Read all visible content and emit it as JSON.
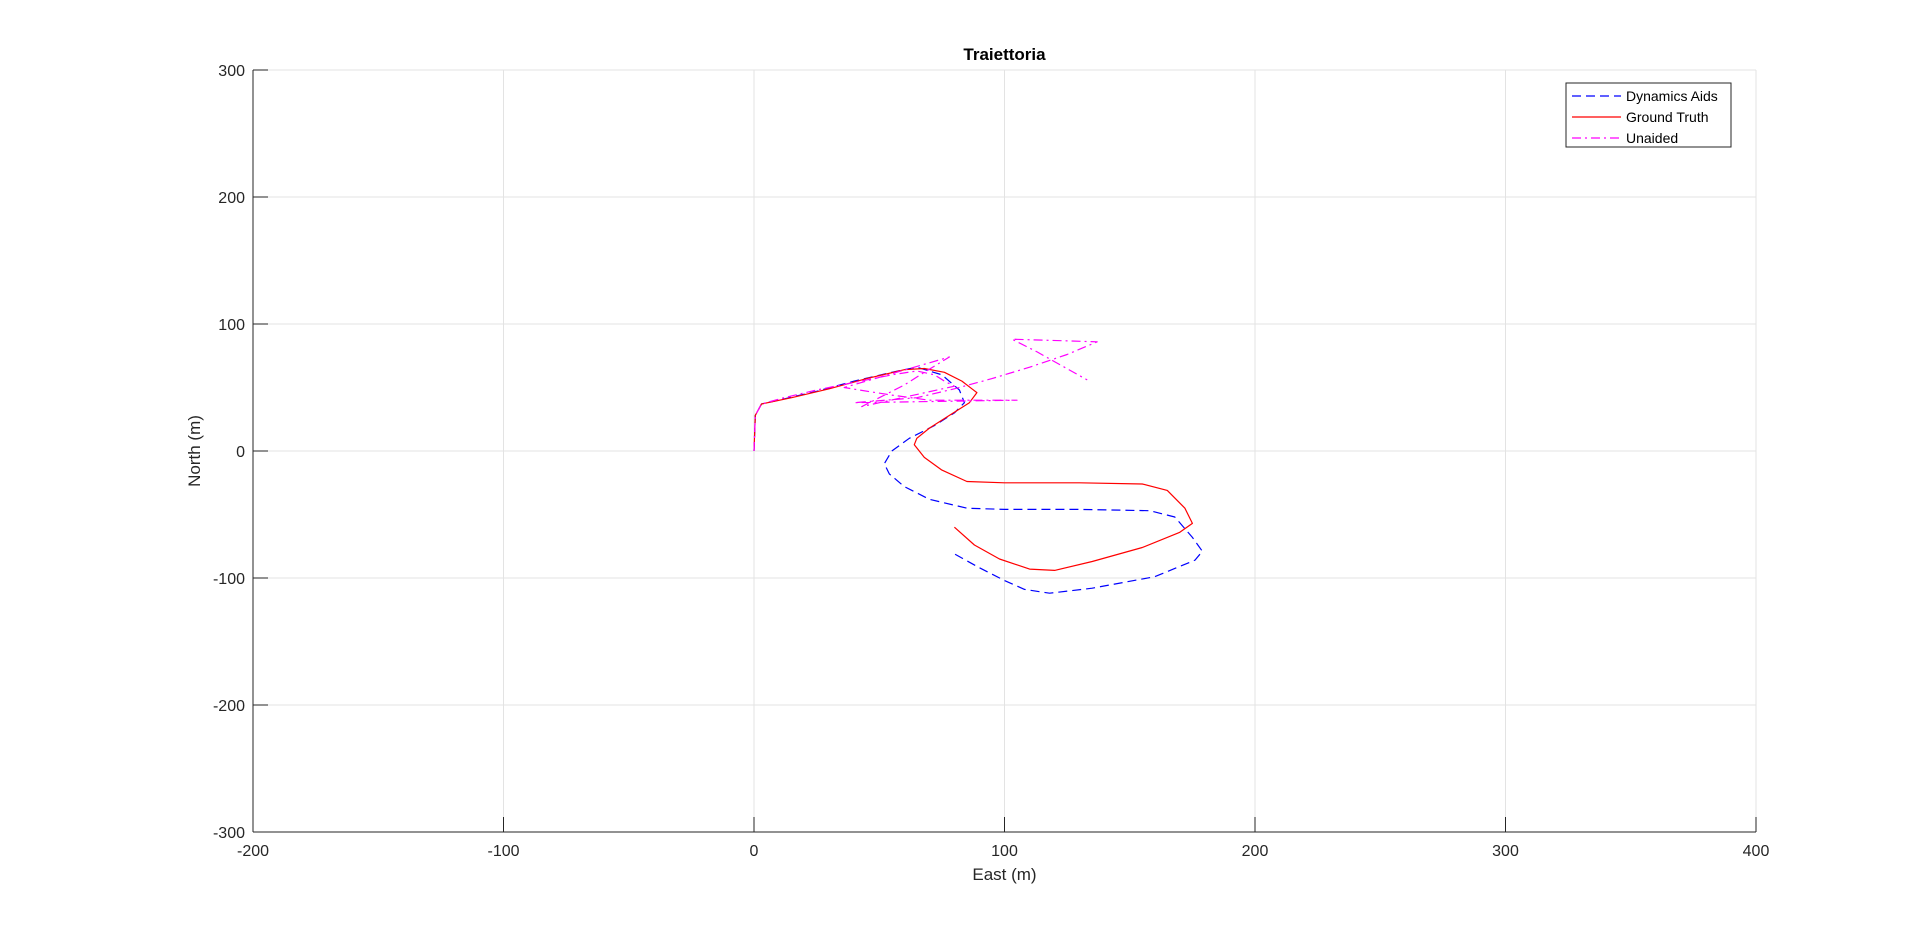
{
  "chart_data": {
    "type": "line",
    "title": "Traiettoria",
    "xlabel": "East (m)",
    "ylabel": "North (m)",
    "xlim": [
      -200,
      400
    ],
    "ylim": [
      -300,
      300
    ],
    "xticks": [
      -200,
      -100,
      0,
      100,
      200,
      300,
      400
    ],
    "yticks": [
      -300,
      -200,
      -100,
      0,
      100,
      200,
      300
    ],
    "xtick_labels": [
      "-200",
      "-100",
      "0",
      "100",
      "200",
      "300",
      "400"
    ],
    "ytick_labels": [
      "-300",
      "-200",
      "-100",
      "0",
      "100",
      "200",
      "300"
    ],
    "grid": true,
    "legend_position": "top-right",
    "series": [
      {
        "name": "Dynamics Aids",
        "color": "#0000ff",
        "style": "dashed",
        "x": [
          0,
          0.5,
          3,
          12,
          25,
          40,
          55,
          65,
          75,
          82,
          84,
          80,
          72,
          62,
          55,
          52,
          54,
          60,
          70,
          85,
          100,
          130,
          158,
          168,
          175,
          179,
          176,
          160,
          135,
          118,
          108,
          100,
          90,
          80
        ],
        "y": [
          0,
          28,
          37,
          41,
          47,
          55,
          62,
          66,
          60,
          48,
          38,
          30,
          20,
          10,
          0,
          -10,
          -18,
          -28,
          -38,
          -45,
          -46,
          -46,
          -47,
          -52,
          -68,
          -79,
          -86,
          -99,
          -108,
          -112,
          -109,
          -102,
          -92,
          -81
        ]
      },
      {
        "name": "Ground Truth",
        "color": "#ff0000",
        "style": "solid",
        "x": [
          0,
          0.5,
          3,
          15,
          30,
          45,
          60,
          68,
          76,
          83,
          87,
          89,
          86,
          78,
          70,
          65,
          64,
          68,
          75,
          85,
          100,
          130,
          155,
          165,
          172,
          175,
          170,
          155,
          135,
          120,
          110,
          98,
          88,
          80
        ],
        "y": [
          0,
          28,
          37,
          42,
          49,
          57,
          64,
          65,
          62,
          55,
          49,
          46,
          38,
          28,
          18,
          10,
          5,
          -5,
          -15,
          -24,
          -25,
          -25,
          -26,
          -31,
          -45,
          -57,
          -64,
          -76,
          -87,
          -94,
          -93,
          -85,
          -74,
          -60
        ]
      },
      {
        "name": "Unaided",
        "color": "#ff00ff",
        "style": "dashdot",
        "x": [
          0,
          0.5,
          3,
          12,
          25,
          40,
          55,
          65,
          72,
          76,
          80,
          43,
          50,
          60,
          68,
          78,
          36,
          42,
          55,
          70,
          80,
          90,
          105,
          40,
          65,
          80,
          95,
          110,
          125,
          137,
          103,
          113,
          123,
          133
        ],
        "y": [
          0,
          28,
          37,
          42,
          48,
          54,
          60,
          63,
          60,
          55,
          51,
          35,
          42,
          52,
          62,
          74,
          50,
          48,
          44,
          40,
          40,
          40,
          40,
          38,
          42,
          49,
          57,
          66,
          76,
          86,
          88,
          78,
          67,
          56
        ]
      }
    ]
  }
}
